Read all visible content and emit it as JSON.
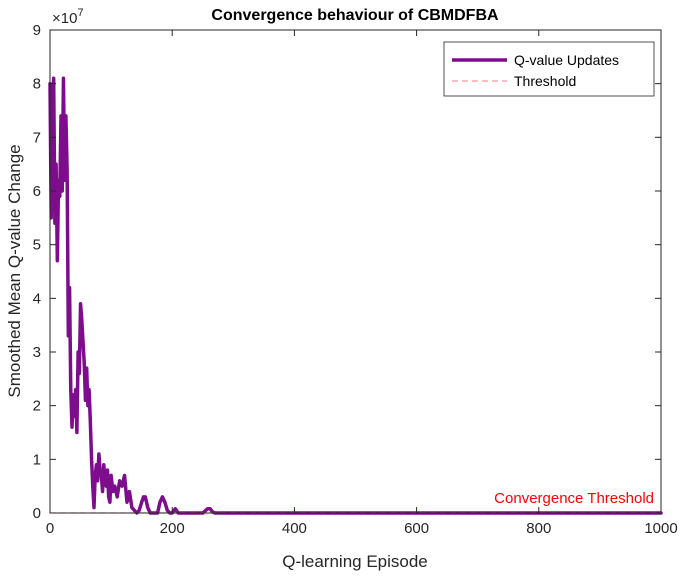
{
  "chart_data": {
    "type": "line",
    "title": "Convergence behaviour of CBMDFBA",
    "xlabel": "Q-learning Episode",
    "ylabel": "Smoothed Mean Q-value Change",
    "xlim": [
      0,
      1000
    ],
    "ylim": [
      0,
      9
    ],
    "y_exponent_label": "×10",
    "y_exponent": "7",
    "x_ticks": [
      0,
      200,
      400,
      600,
      800,
      1000
    ],
    "y_ticks": [
      0,
      1,
      2,
      3,
      4,
      5,
      6,
      7,
      8,
      9
    ],
    "grid": false,
    "legend_position": "top-right",
    "annotation": {
      "text": "Convergence Threshold",
      "color": "#ff0000"
    },
    "series": [
      {
        "name": "Q-value Updates",
        "color": "#7e0d8e",
        "x": [
          0,
          2,
          4,
          6,
          8,
          10,
          12,
          14,
          16,
          18,
          20,
          22,
          24,
          26,
          28,
          30,
          32,
          34,
          36,
          38,
          40,
          42,
          44,
          46,
          48,
          50,
          52,
          54,
          56,
          58,
          60,
          62,
          64,
          66,
          68,
          70,
          72,
          74,
          76,
          78,
          80,
          82,
          84,
          86,
          88,
          90,
          92,
          94,
          96,
          98,
          100,
          103,
          106,
          110,
          114,
          118,
          122,
          126,
          130,
          134,
          138,
          142,
          146,
          150,
          153,
          156,
          160,
          164,
          168,
          172,
          176,
          180,
          184,
          188,
          192,
          196,
          200,
          205,
          210,
          215,
          220,
          230,
          240,
          250,
          255,
          258,
          262,
          266,
          270,
          300,
          400,
          500,
          600,
          700,
          800,
          900,
          1000
        ],
        "y": [
          8.0,
          5.5,
          7.5,
          8.1,
          5.4,
          6.5,
          4.7,
          6.2,
          5.9,
          7.4,
          6.0,
          8.1,
          6.2,
          7.4,
          6.4,
          3.3,
          4.2,
          2.3,
          1.6,
          2.2,
          1.8,
          2.3,
          1.5,
          3.0,
          2.6,
          3.9,
          3.6,
          3.2,
          2.8,
          2.1,
          2.7,
          2.0,
          2.3,
          1.7,
          1.0,
          0.5,
          0.1,
          0.7,
          0.9,
          0.6,
          1.1,
          0.8,
          0.7,
          0.4,
          0.9,
          0.6,
          0.5,
          0.8,
          0.3,
          0.2,
          0.7,
          0.4,
          0.5,
          0.3,
          0.6,
          0.5,
          0.7,
          0.2,
          0.4,
          0.1,
          0.05,
          0.0,
          0.05,
          0.2,
          0.3,
          0.3,
          0.1,
          0.0,
          0.0,
          0.0,
          0.0,
          0.2,
          0.3,
          0.2,
          0.05,
          0.0,
          0.0,
          0.08,
          0.0,
          0.0,
          0.0,
          0.0,
          0.0,
          0.0,
          0.05,
          0.08,
          0.08,
          0.02,
          0.0,
          0.0,
          0.0,
          0.0,
          0.0,
          0.0,
          0.0,
          0.0,
          0.0
        ]
      },
      {
        "name": "Threshold",
        "color": "#f08080",
        "x": [
          0,
          1000
        ],
        "y": [
          0.003,
          0.003
        ]
      }
    ]
  }
}
